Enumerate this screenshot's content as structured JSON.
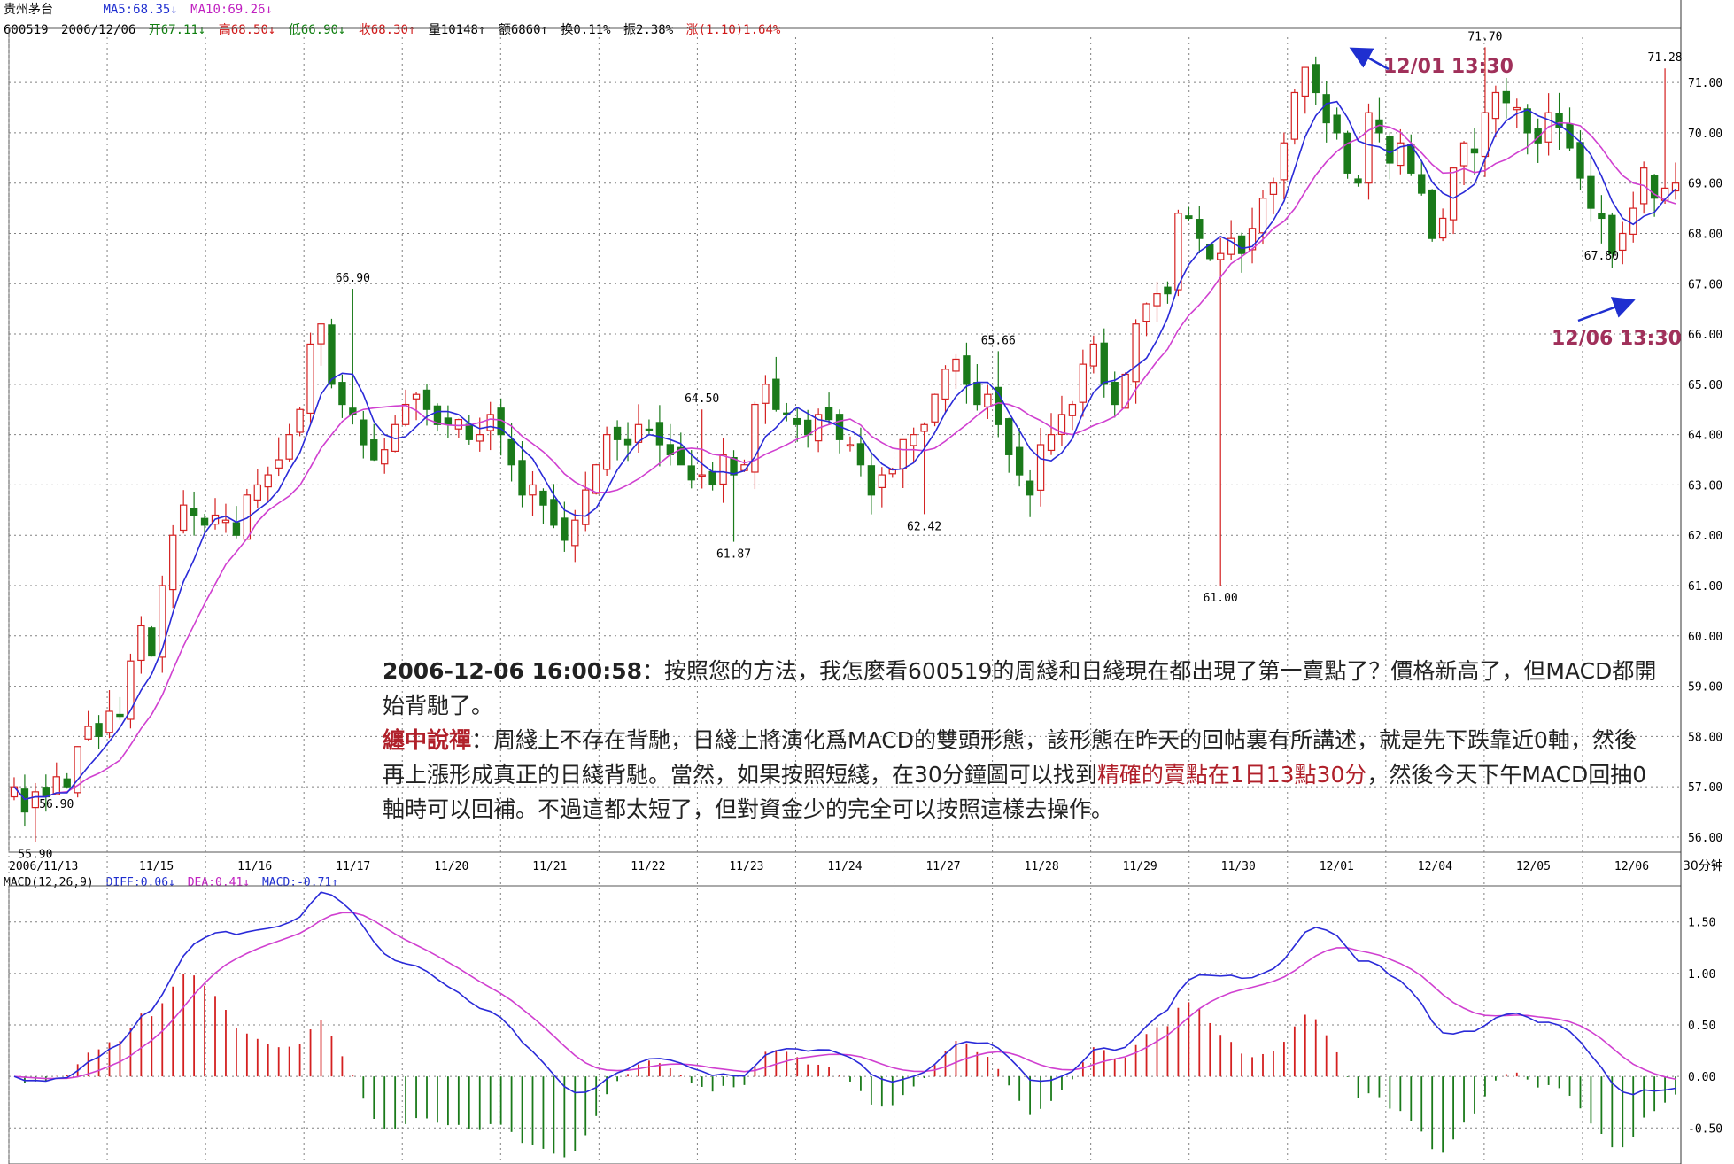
{
  "header": {
    "name": "贵州茅台",
    "code": "600519",
    "date": "2006/12/06",
    "ma5": "MA5:68.35↓",
    "ma10": "MA10:69.26↓",
    "open": "开67.11↓",
    "high": "高68.50↓",
    "low": "低66.90↓",
    "close": "收68.30↑",
    "vol": "量10148↑",
    "amount": "额6860↑",
    "turnover": "换0.11%",
    "amplitude": "振2.38%",
    "change": "涨(1.10)1.64%"
  },
  "period_label": "30分钟",
  "macd_header": {
    "name": "MACD(12,26,9)",
    "diff": "DIFF:0.06↓",
    "dea": "DEA:0.41↓",
    "macd": "MACD:-0.71↑"
  },
  "annotations": {
    "a1": "12/01 13:30",
    "a2": "12/06 13:30"
  },
  "note": {
    "line1_ts": "2006-12-06 16:00:58",
    "line1_text": "：按照您的方法，我怎麼看600519的周綫和日綫現在都出現了第一賣點了？價格新高了，但MACD都開始背馳了。",
    "author": "纏中說禪",
    "reply_a": "：周綫上不存在背馳，日綫上將演化爲MACD的雙頭形態，該形態在昨天的回帖裏有所講述，就是先下跌靠近0軸，然後再上漲形成真正的日綫背馳。當然，如果按照短綫，在30分鐘圖可以找到",
    "reply_hl": "精確的賣點在1日13點30分",
    "reply_b": "，然後今天下午MACD回抽0軸時可以回補。不過這都太短了，但對資金少的完全可以按照這樣去操作。"
  },
  "colors": {
    "up": "#d42020",
    "down": "#1a7a1a",
    "ma5": "#2a2ad8",
    "ma10": "#d040d0",
    "grid": "#808080"
  },
  "chart_data": [
    {
      "type": "candlestick",
      "title": "贵州茅台 600519 30分钟",
      "x_ticks": [
        "2006/11/13",
        "11/15",
        "11/16",
        "11/17",
        "11/20",
        "11/21",
        "11/22",
        "11/23",
        "11/24",
        "11/27",
        "11/28",
        "11/29",
        "11/30",
        "12/01",
        "12/04",
        "12/05",
        "12/06"
      ],
      "ylim": [
        55.7,
        71.9
      ],
      "y_ticks": [
        "56.00",
        "57.00",
        "58.00",
        "59.00",
        "60.00",
        "61.00",
        "62.00",
        "63.00",
        "64.00",
        "65.00",
        "66.00",
        "67.00",
        "68.00",
        "69.00",
        "70.00",
        "71.00"
      ],
      "labels": [
        {
          "i": 2,
          "text": "55.90",
          "y": 55.9,
          "pos": "below"
        },
        {
          "i": 4,
          "text": "56.90",
          "y": 56.9,
          "pos": "below"
        },
        {
          "i": 32,
          "text": "66.90",
          "y": 66.9,
          "pos": "above"
        },
        {
          "i": 65,
          "text": "64.50",
          "y": 64.5,
          "pos": "above"
        },
        {
          "i": 68,
          "text": "61.87",
          "y": 61.87,
          "pos": "below"
        },
        {
          "i": 86,
          "text": "62.42",
          "y": 62.42,
          "pos": "below"
        },
        {
          "i": 93,
          "text": "65.66",
          "y": 65.66,
          "pos": "above"
        },
        {
          "i": 114,
          "text": "61.00",
          "y": 61.0,
          "pos": "below"
        },
        {
          "i": 139,
          "text": "71.70",
          "y": 71.7,
          "pos": "above"
        },
        {
          "i": 150,
          "text": "67.80",
          "y": 67.8,
          "pos": "below"
        },
        {
          "i": 156,
          "text": "71.28",
          "y": 71.28,
          "pos": "above"
        },
        {
          "i": 168,
          "text": "66.90",
          "y": 66.9,
          "pos": "right"
        }
      ],
      "series": [
        {
          "name": "MA5",
          "key": "ma5"
        },
        {
          "name": "MA10",
          "key": "ma10"
        }
      ],
      "close_path": [
        57.0,
        56.5,
        56.9,
        56.8,
        57.2,
        57.0,
        57.8,
        58.2,
        58.0,
        58.5,
        58.4,
        59.5,
        60.2,
        59.6,
        61.0,
        62.0,
        62.6,
        62.4,
        62.2,
        62.4,
        62.3,
        62.0,
        62.8,
        63.0,
        63.2,
        63.5,
        64.0,
        64.5,
        65.8,
        66.2,
        65.0,
        64.6,
        64.4,
        63.8,
        63.5,
        63.7,
        64.2,
        64.6,
        64.8,
        64.5,
        64.2,
        64.2,
        64.3,
        63.9,
        64.0,
        64.4,
        64.0,
        63.4,
        62.8,
        63.0,
        62.6,
        62.2,
        61.9,
        62.3,
        62.9,
        63.4,
        64.0,
        63.9,
        63.8,
        64.2,
        64.1,
        63.8,
        63.6,
        63.4,
        63.1,
        63.2,
        63.0,
        63.6,
        63.2,
        63.4,
        64.6,
        65.0,
        64.5,
        64.4,
        64.2,
        64.0,
        64.4,
        64.3,
        63.9,
        63.8,
        63.4,
        62.8,
        63.2,
        63.3,
        63.9,
        64.0,
        64.2,
        64.8,
        65.3,
        65.5,
        65.0,
        64.6,
        64.8,
        64.2,
        63.6,
        63.2,
        62.8,
        63.8,
        64.0,
        64.4,
        64.6,
        65.4,
        65.8,
        65.0,
        64.6,
        65.2,
        66.2,
        66.6,
        66.8,
        66.8,
        68.4,
        68.3,
        67.9,
        67.5,
        67.6,
        67.9,
        67.6,
        68.1,
        68.7,
        69.0,
        69.8,
        70.8,
        71.3,
        70.8,
        70.2,
        70.0,
        69.2,
        69.0,
        70.4,
        70.0,
        69.4,
        69.8,
        69.2,
        68.8,
        67.9,
        68.3,
        69.3,
        69.8,
        69.6,
        70.4,
        70.8,
        70.6,
        70.5,
        70.0,
        69.8,
        70.4,
        70.1,
        69.7,
        69.1,
        68.5,
        68.3,
        67.6,
        68.0,
        68.5,
        69.3,
        68.7,
        68.9,
        69.0
      ]
    },
    {
      "type": "macd",
      "name": "MACD(12,26,9)",
      "ylim": [
        -0.85,
        1.85
      ],
      "y_ticks": [
        "1.50",
        "1.00",
        "0.50",
        "0.00",
        "-0.50"
      ]
    }
  ]
}
